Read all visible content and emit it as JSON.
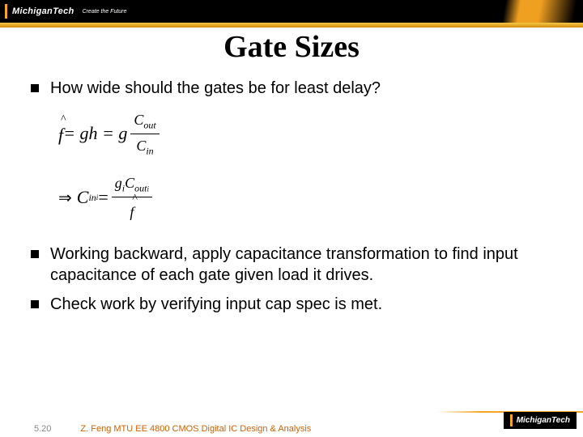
{
  "header": {
    "brand": "MichiganTech",
    "tagline": "Create the Future",
    "brand_color": "#f5a623",
    "bar_bg": "#000000"
  },
  "title": "Gate Sizes",
  "bullets": {
    "b1": "How wide should the gates be for least delay?",
    "b2": "Working backward, apply capacitance transformation to find input capacitance of each gate given load it drives.",
    "b3": "Check work by verifying input cap spec is met."
  },
  "equations": {
    "eq1_lhs_symbol": "f",
    "eq1_rhs1": " = gh = g ",
    "eq1_frac_num1": "C",
    "eq1_frac_num_sub": "out",
    "eq1_frac_den1": "C",
    "eq1_frac_den_sub": "in",
    "eq2_prefix": "⇒ ",
    "eq2_lhs": "C",
    "eq2_lhs_sub": "in",
    "eq2_lhs_subsub": "i",
    "eq2_eq": " = ",
    "eq2_num_g": "g",
    "eq2_num_g_sub": "i",
    "eq2_num_C": "C",
    "eq2_num_C_sub": "out",
    "eq2_num_C_subsub": "i",
    "eq2_den_symbol": "f"
  },
  "footer": {
    "page": "5.20",
    "line": "Z. Feng  MTU EE 4800 CMOS Digital IC Design & Analysis",
    "brand": "MichiganTech"
  },
  "styling": {
    "title_font": "Times New Roman",
    "title_size_pt": 30,
    "body_font": "Arial",
    "body_size_pt": 16,
    "bullet_shape": "square",
    "bullet_color": "#000000",
    "gold": "#f5a623",
    "footer_text_color": "#d06000"
  }
}
